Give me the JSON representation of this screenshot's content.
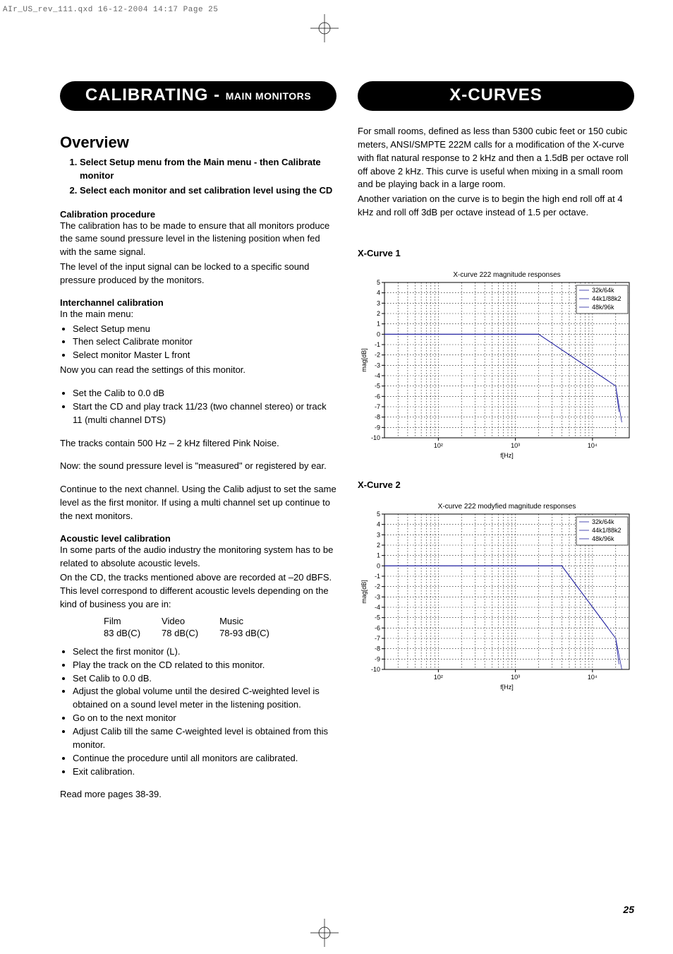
{
  "header_line": "AIr_US_rev_111.qxd  16-12-2004  14:17  Page 25",
  "page_number": "25",
  "left": {
    "pill_main": "CALIBRATING - ",
    "pill_sub": "MAIN MONITORS",
    "overview_title": "Overview",
    "numbered": [
      "Select Setup menu from the Main menu - then Calibrate monitor",
      "Select each monitor and set calibration level using the CD"
    ],
    "calib_proc_head": "Calibration procedure",
    "calib_proc_p1": "The calibration has to be made to ensure that all monitors produce the same sound pressure level in the listening position when fed with the same signal.",
    "calib_proc_p2": "The level of the input signal can be locked to a specific sound pressure produced by the monitors.",
    "inter_head": "Interchannel calibration",
    "inter_intro": "In the main menu:",
    "inter_list1": [
      "Select Setup menu",
      "Then select Calibrate monitor",
      "Select monitor Master L front"
    ],
    "inter_after1": "Now you can read the settings of this monitor.",
    "inter_list2": [
      "Set the Calib to 0.0 dB",
      "Start the CD and play track 11/23 (two channel stereo) or track 11 (multi channel DTS)"
    ],
    "inter_p1": "The tracks contain 500 Hz – 2 kHz filtered Pink Noise.",
    "inter_p2": "Now: the sound pressure level is \"measured\" or registered by ear.",
    "inter_p3": "Continue to the next channel. Using the Calib adjust to set the same level as the first monitor. If using a multi channel set up continue to the next monitors.",
    "acoustic_head": "Acoustic level calibration",
    "acoustic_p1": "In some parts of the audio industry the monitoring system has to be related to absolute acoustic levels.",
    "acoustic_p2": "On the CD, the tracks mentioned above are recorded at –20 dBFS. This level correspond to different acoustic levels depending on the kind of business you are in:",
    "level_table": {
      "headers": [
        "Film",
        "Video",
        "Music"
      ],
      "values": [
        "83 dB(C)",
        "78 dB(C)",
        "78-93 dB(C)"
      ]
    },
    "acoustic_list": [
      "Select the first monitor (L).",
      "Play the track on the CD related to this monitor.",
      "Set Calib to 0.0 dB.",
      "Adjust the global volume until the desired C-weighted level is obtained on a sound level meter in the listening position.",
      "Go on to the next monitor",
      "Adjust Calib till the same C-weighted level is obtained from this monitor.",
      "Continue the procedure until all monitors are calibrated.",
      "Exit calibration."
    ],
    "readmore": "Read more pages 38-39."
  },
  "right": {
    "pill": "X-CURVES",
    "intro_p1": "For small rooms, defined as less than 5300 cubic feet or 150 cubic meters, ANSI/SMPTE 222M calls for a modification of the X-curve with flat natural response to 2 kHz and then a 1.5dB per octave roll off above 2 kHz. This curve is useful when mixing in a small room and be playing back in a large room.",
    "intro_p2": "Another variation on the curve is to begin the high end roll off at 4 kHz and roll off 3dB per octave instead of 1.5 per octave.",
    "chart1_label": "X-Curve 1",
    "chart2_label": "X-Curve 2",
    "chart1": {
      "title": "X-curve 222 magnitude responses",
      "xlabel": "f[Hz]",
      "ylabel": "mag[dB]",
      "ylim": [
        -10,
        5
      ],
      "yticks": [
        -10,
        -9,
        -8,
        -7,
        -6,
        -5,
        -4,
        -3,
        -2,
        -1,
        0,
        1,
        2,
        3,
        4,
        5
      ],
      "x_log_decades": [
        [
          20,
          100
        ],
        [
          100,
          1000
        ],
        [
          1000,
          10000
        ],
        [
          10000,
          40000
        ]
      ],
      "x_major_labels": {
        "100": "10²",
        "1000": "10³",
        "10000": "10⁴"
      },
      "legend": [
        "32k/64k",
        "44k1/88k2",
        "48k/96k"
      ],
      "colors": {
        "line": "#2020a0",
        "grid": "#000000",
        "axis": "#000000"
      },
      "series": [
        {
          "name": "32k/64k",
          "points": [
            [
              20,
              0
            ],
            [
              2000,
              0
            ],
            [
              16000,
              -4.5
            ]
          ]
        },
        {
          "name": "44k1/88k2",
          "points": [
            [
              20,
              0
            ],
            [
              2000,
              0
            ],
            [
              20000,
              -5.0
            ],
            [
              22050,
              -7.5
            ]
          ]
        },
        {
          "name": "48k/96k",
          "points": [
            [
              20,
              0
            ],
            [
              2000,
              0
            ],
            [
              20000,
              -5.0
            ],
            [
              24000,
              -8.5
            ]
          ]
        }
      ]
    },
    "chart2": {
      "title": "X-curve 222 modyfied magnitude responses",
      "xlabel": "f[Hz]",
      "ylabel": "mag[dB]",
      "ylim": [
        -10,
        5
      ],
      "yticks": [
        -10,
        -9,
        -8,
        -7,
        -6,
        -5,
        -4,
        -3,
        -2,
        -1,
        0,
        1,
        2,
        3,
        4,
        5
      ],
      "x_major_labels": {
        "100": "10²",
        "1000": "10³",
        "10000": "10⁴"
      },
      "legend": [
        "32k/64k",
        "44k1/88k2",
        "48k/96k"
      ],
      "colors": {
        "line": "#2020a0",
        "grid": "#000000",
        "axis": "#000000"
      },
      "series": [
        {
          "name": "32k/64k",
          "points": [
            [
              20,
              0
            ],
            [
              4000,
              0
            ],
            [
              16000,
              -6.0
            ]
          ]
        },
        {
          "name": "44k1/88k2",
          "points": [
            [
              20,
              0
            ],
            [
              4000,
              0
            ],
            [
              20000,
              -7.0
            ],
            [
              22050,
              -9.5
            ]
          ]
        },
        {
          "name": "48k/96k",
          "points": [
            [
              20,
              0
            ],
            [
              4000,
              0
            ],
            [
              20000,
              -7.0
            ],
            [
              24000,
              -10.0
            ]
          ]
        }
      ]
    }
  }
}
